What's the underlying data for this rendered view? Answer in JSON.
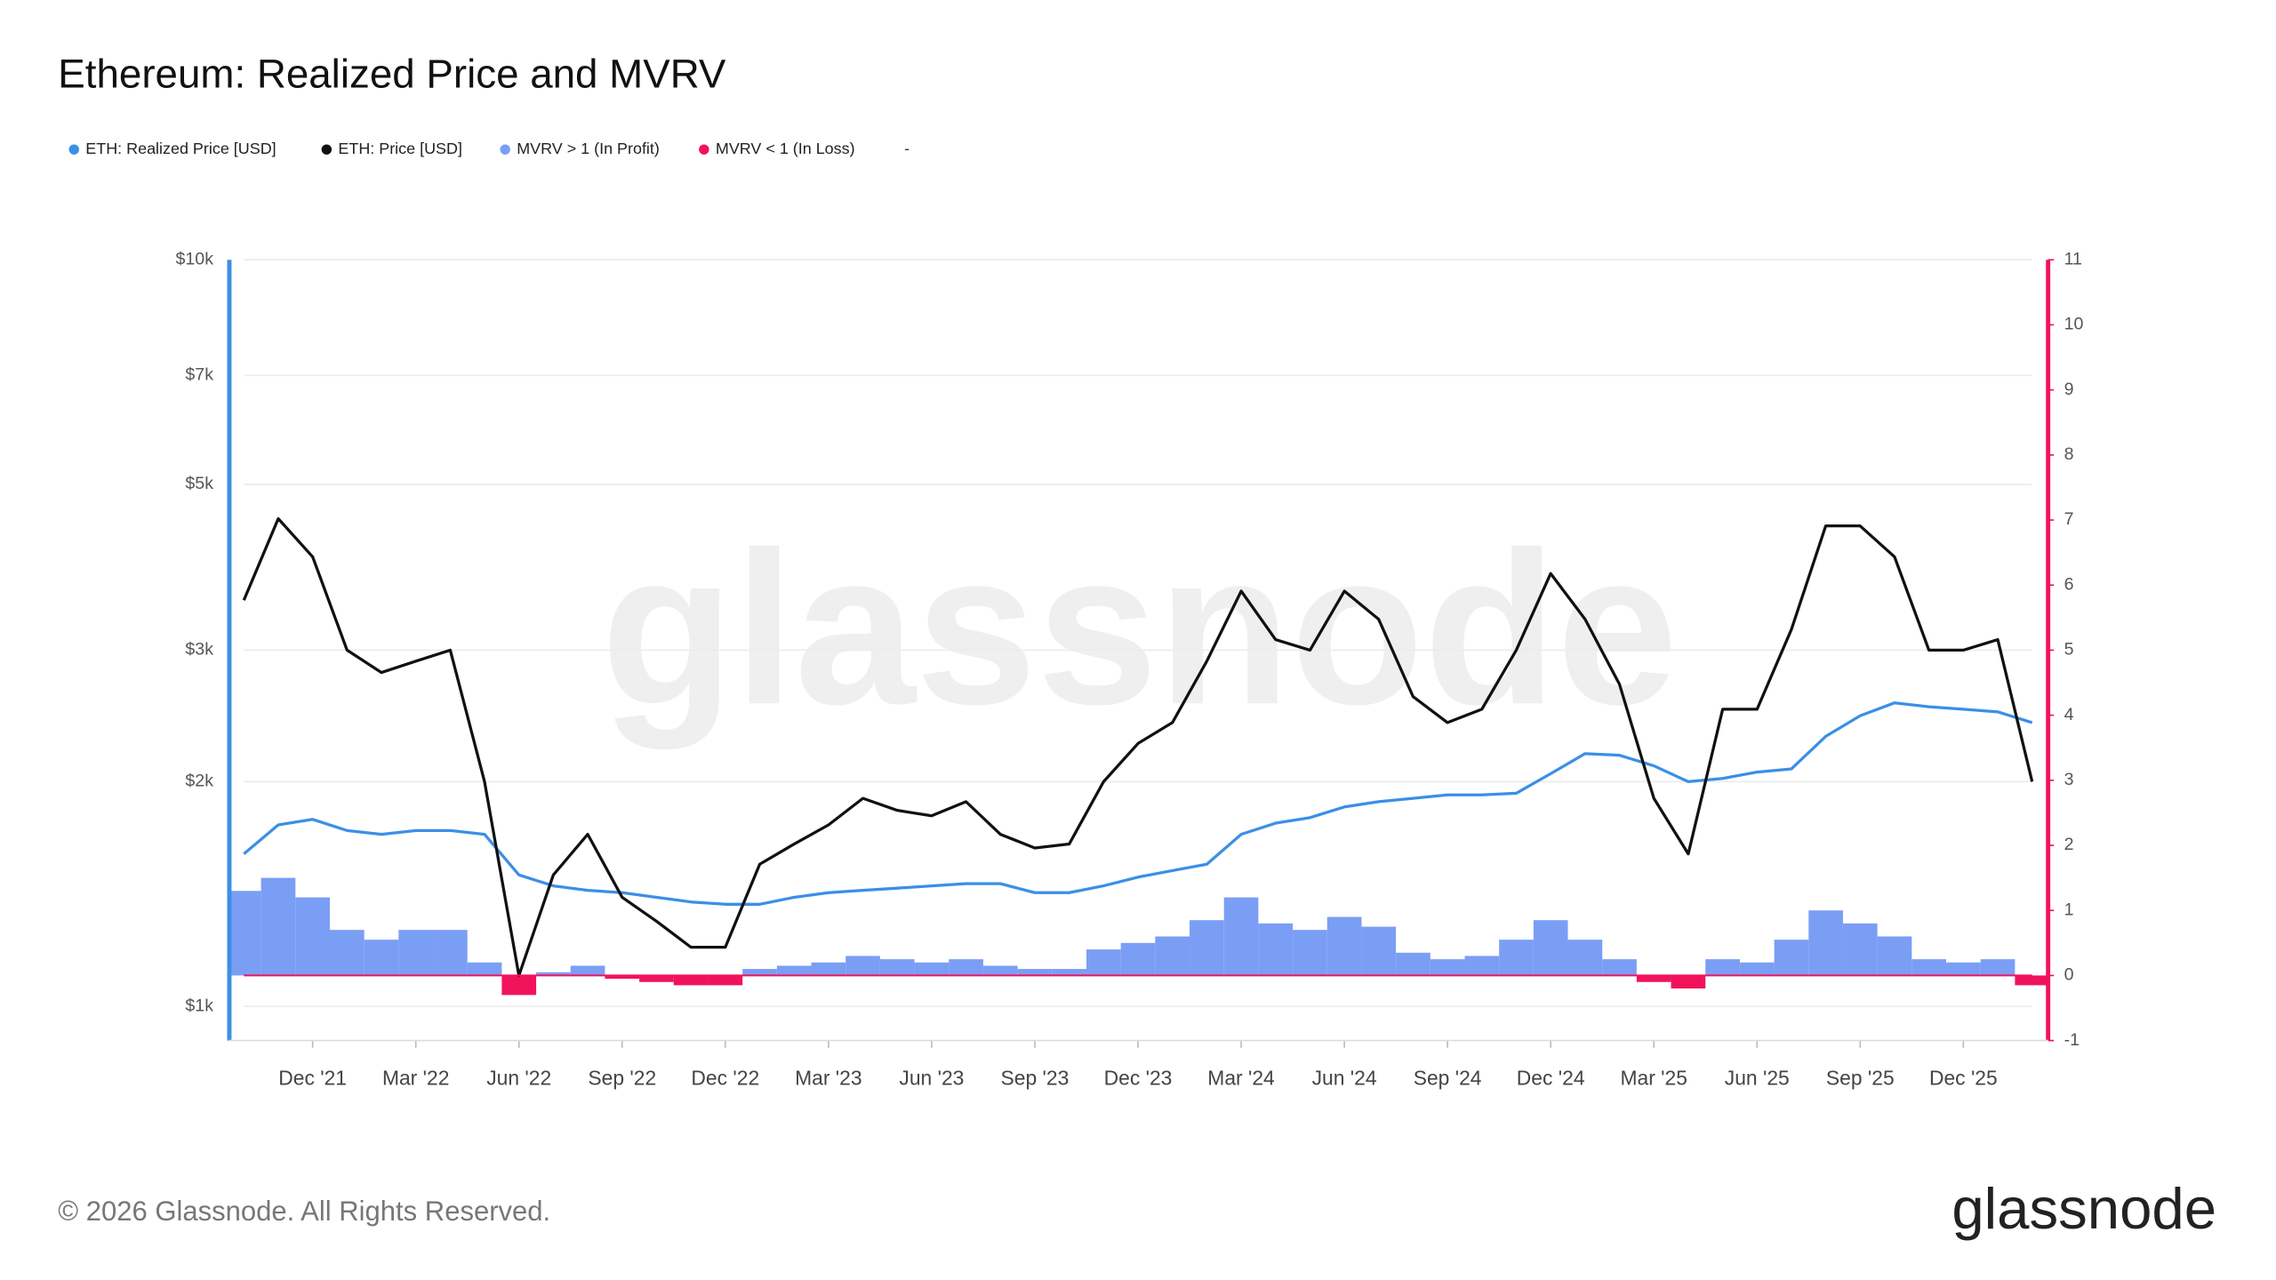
{
  "chart_data": {
    "type": "line",
    "title": "Ethereum: Realized Price and MVRV",
    "legend_extra": "-",
    "watermark": "glassnode",
    "footer": "© 2026 Glassnode. All Rights Reserved.",
    "logo": "glassnode",
    "x": [
      "2021-10",
      "2021-11",
      "2021-12",
      "2022-01",
      "2022-02",
      "2022-03",
      "2022-04",
      "2022-05",
      "2022-06",
      "2022-07",
      "2022-08",
      "2022-09",
      "2022-10",
      "2022-11",
      "2022-12",
      "2023-01",
      "2023-02",
      "2023-03",
      "2023-04",
      "2023-05",
      "2023-06",
      "2023-07",
      "2023-08",
      "2023-09",
      "2023-10",
      "2023-11",
      "2023-12",
      "2024-01",
      "2024-02",
      "2024-03",
      "2024-04",
      "2024-05",
      "2024-06",
      "2024-07",
      "2024-08",
      "2024-09",
      "2024-10",
      "2024-11",
      "2024-12",
      "2025-01",
      "2025-02",
      "2025-03",
      "2025-04",
      "2025-05",
      "2025-06",
      "2025-07",
      "2025-08",
      "2025-09",
      "2025-10",
      "2025-11",
      "2025-12",
      "2026-01",
      "2026-02"
    ],
    "xlim": [
      "2021-10",
      "2026-02"
    ],
    "xticks": [
      {
        "value": "2021-12",
        "label": "Dec '21"
      },
      {
        "value": "2022-03",
        "label": "Mar '22"
      },
      {
        "value": "2022-06",
        "label": "Jun '22"
      },
      {
        "value": "2022-09",
        "label": "Sep '22"
      },
      {
        "value": "2022-12",
        "label": "Dec '22"
      },
      {
        "value": "2023-03",
        "label": "Mar '23"
      },
      {
        "value": "2023-06",
        "label": "Jun '23"
      },
      {
        "value": "2023-09",
        "label": "Sep '23"
      },
      {
        "value": "2023-12",
        "label": "Dec '23"
      },
      {
        "value": "2024-03",
        "label": "Mar '24"
      },
      {
        "value": "2024-06",
        "label": "Jun '24"
      },
      {
        "value": "2024-09",
        "label": "Sep '24"
      },
      {
        "value": "2024-12",
        "label": "Dec '24"
      },
      {
        "value": "2025-03",
        "label": "Mar '25"
      },
      {
        "value": "2025-06",
        "label": "Jun '25"
      },
      {
        "value": "2025-09",
        "label": "Sep '25"
      },
      {
        "value": "2025-12",
        "label": "Dec '25"
      }
    ],
    "ylim": [
      900,
      10000
    ],
    "log_scale": true,
    "yticks": [
      {
        "value": 1000,
        "label": "$1k"
      },
      {
        "value": 2000,
        "label": "$2k"
      },
      {
        "value": 3000,
        "label": "$3k"
      },
      {
        "value": 5000,
        "label": "$5k"
      },
      {
        "value": 7000,
        "label": "$7k"
      },
      {
        "value": 10000,
        "label": "$10k"
      }
    ],
    "y2lim": [
      -1,
      11
    ],
    "y2ticks": [
      -1,
      0,
      1,
      2,
      3,
      4,
      5,
      6,
      7,
      8,
      9,
      10,
      11
    ],
    "grid": true,
    "series": [
      {
        "name": "ETH: Realized Price [USD]",
        "type": "line",
        "color": "#3b8fe6",
        "axis": "y",
        "values": [
          1600,
          1750,
          1780,
          1720,
          1700,
          1720,
          1720,
          1700,
          1500,
          1450,
          1430,
          1420,
          1400,
          1380,
          1370,
          1370,
          1400,
          1420,
          1430,
          1440,
          1450,
          1460,
          1460,
          1420,
          1420,
          1450,
          1490,
          1520,
          1550,
          1700,
          1760,
          1790,
          1850,
          1880,
          1900,
          1920,
          1920,
          1930,
          2050,
          2180,
          2170,
          2100,
          2000,
          2020,
          2060,
          2080,
          2300,
          2450,
          2550,
          2520,
          2500,
          2480,
          2400
        ]
      },
      {
        "name": "ETH: Price [USD]",
        "type": "line",
        "color": "#111111",
        "axis": "y",
        "values": [
          3500,
          4500,
          4000,
          3000,
          2800,
          2900,
          3000,
          2000,
          1100,
          1500,
          1700,
          1400,
          1300,
          1200,
          1200,
          1550,
          1650,
          1750,
          1900,
          1830,
          1800,
          1880,
          1700,
          1630,
          1650,
          2000,
          2250,
          2400,
          2900,
          3600,
          3100,
          3000,
          3600,
          3300,
          2600,
          2400,
          2500,
          3000,
          3800,
          3300,
          2700,
          1900,
          1600,
          2500,
          2500,
          3200,
          4400,
          4400,
          4000,
          3000,
          3000,
          3100,
          2000
        ]
      },
      {
        "name": "MVRV > 1 (In Profit)",
        "type": "bar",
        "color": "#7b9ef5",
        "axis": "y2",
        "values": [
          1.3,
          1.5,
          1.2,
          0.7,
          0.55,
          0.7,
          0.7,
          0.2,
          null,
          0.05,
          0.15,
          null,
          null,
          null,
          null,
          0.1,
          0.15,
          0.2,
          0.3,
          0.25,
          0.2,
          0.25,
          0.15,
          0.1,
          0.1,
          0.4,
          0.5,
          0.6,
          0.85,
          1.2,
          0.8,
          0.7,
          0.9,
          0.75,
          0.35,
          0.25,
          0.3,
          0.55,
          0.85,
          0.55,
          0.25,
          null,
          null,
          0.25,
          0.2,
          0.55,
          1.0,
          0.8,
          0.6,
          0.25,
          0.2,
          0.25,
          null
        ]
      },
      {
        "name": "MVRV < 1 (In Loss)",
        "type": "bar",
        "color": "#f0135c",
        "axis": "y2",
        "values": [
          null,
          null,
          null,
          null,
          null,
          null,
          null,
          null,
          -0.3,
          null,
          null,
          -0.05,
          -0.1,
          -0.15,
          -0.15,
          null,
          null,
          null,
          null,
          null,
          null,
          null,
          null,
          null,
          null,
          null,
          null,
          null,
          null,
          null,
          null,
          null,
          null,
          null,
          null,
          null,
          null,
          null,
          null,
          null,
          null,
          -0.1,
          -0.2,
          null,
          null,
          null,
          null,
          null,
          null,
          null,
          null,
          null,
          -0.15
        ]
      }
    ]
  }
}
